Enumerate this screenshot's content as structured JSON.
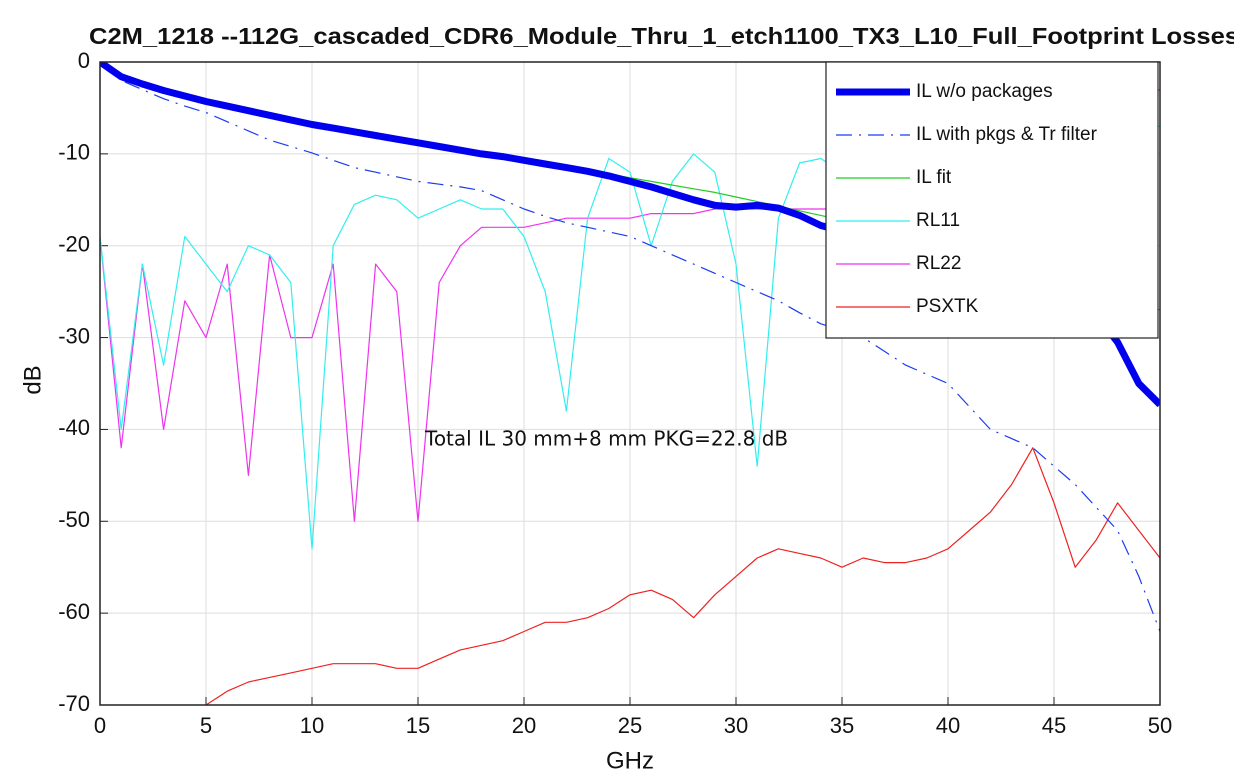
{
  "chart_data": {
    "type": "line",
    "title": "C2M_1218 --112G_cascaded_CDR6_Module_Thru_1_etch1100_TX3_L10_Full_Footprint Losses",
    "xlabel": "GHz",
    "ylabel": "dB",
    "annotation": "Total IL 30 mm+8 mm PKG=22.8 dB",
    "x": [
      0,
      1,
      2,
      3,
      4,
      5,
      6,
      7,
      8,
      9,
      10,
      11,
      12,
      13,
      14,
      15,
      16,
      17,
      18,
      19,
      20,
      21,
      22,
      23,
      24,
      25,
      26,
      27,
      28,
      29,
      30,
      31,
      32,
      33,
      34,
      35,
      36,
      37,
      38,
      39,
      40,
      41,
      42,
      43,
      44,
      45,
      46,
      47,
      48,
      49,
      50
    ],
    "xlim": [
      0,
      50
    ],
    "ylim": [
      -70,
      0
    ],
    "xticks": [
      0,
      5,
      10,
      15,
      20,
      25,
      30,
      35,
      40,
      45,
      50
    ],
    "yticks": [
      0,
      -10,
      -20,
      -30,
      -40,
      -50,
      -60,
      -70
    ],
    "grid": true,
    "legend": "upper right",
    "series": [
      {
        "name": "IL w/o packages",
        "color": "#0000ee",
        "line_width": 7,
        "dash": "solid",
        "values": [
          0,
          -1.6,
          -2.4,
          -3.1,
          -3.7,
          -4.3,
          -4.8,
          -5.3,
          -5.8,
          -6.3,
          -6.8,
          -7.2,
          -7.6,
          -8.0,
          -8.4,
          -8.8,
          -9.2,
          -9.6,
          -10.0,
          -10.3,
          -10.7,
          -11.1,
          -11.5,
          -11.9,
          -12.4,
          -13.0,
          -13.6,
          -14.3,
          -15.0,
          -15.6,
          -15.8,
          -15.6,
          -15.9,
          -16.7,
          -17.8,
          -18.4,
          -18.5,
          -18.6,
          -18.9,
          -19.3,
          -19.8,
          -20.4,
          -21.1,
          -21.8,
          -22.6,
          -23.5,
          -25,
          -27.5,
          -30.5,
          -35,
          -37.3
        ]
      },
      {
        "name": "IL with pkgs & Tr filter",
        "color": "#1a3cf0",
        "line_width": 1.2,
        "dash": "dashdot",
        "values": [
          0,
          -2.0,
          -3.0,
          -4.0,
          -4.8,
          -5.5,
          -6.5,
          -7.5,
          -8.5,
          -9.2,
          -9.9,
          -10.7,
          -11.5,
          -12.0,
          -12.5,
          -13.0,
          -13.3,
          -13.6,
          -14.0,
          -15.0,
          -16.0,
          -16.8,
          -17.5,
          -18.0,
          -18.5,
          -19.0,
          -20.0,
          -21.0,
          -22.0,
          -23.0,
          -24.0,
          -25.0,
          -26.0,
          -27.3,
          -28.5,
          -29.2,
          -30.0,
          -31.5,
          -33.0,
          -34.0,
          -35.0,
          -37.5,
          -40.0,
          -41.0,
          -42.0,
          -44.0,
          -46.0,
          -48.5,
          -51.0,
          -56.0,
          -62.0
        ]
      },
      {
        "name": "IL fit",
        "color": "#22cc22",
        "line_width": 1.2,
        "dash": "solid",
        "values": [
          0,
          -1.5,
          -2.3,
          -3.0,
          -3.6,
          -4.2,
          -4.7,
          -5.2,
          -5.7,
          -6.2,
          -6.6,
          -7.1,
          -7.5,
          -7.9,
          -8.3,
          -8.7,
          -9.1,
          -9.5,
          -9.9,
          -10.2,
          -10.6,
          -11.0,
          -11.4,
          -11.8,
          -12.2,
          -12.6,
          -13.0,
          -13.4,
          -13.8,
          -14.2,
          -14.7,
          -15.2,
          -15.7,
          -16.2,
          -16.7,
          -17.2,
          -17.7,
          -18.2,
          -18.7,
          -19.2,
          -19.8,
          -20.4,
          -21.0,
          -21.6,
          -22.2,
          -22.9,
          -23.6,
          -24.4,
          -25.2,
          -26.1,
          -27.0
        ]
      },
      {
        "name": "RL11",
        "color": "#33eeee",
        "line_width": 1.2,
        "dash": "solid",
        "values": [
          -19,
          -40,
          -22,
          -33,
          -19,
          -22,
          -25,
          -20,
          -21,
          -24,
          -53,
          -20,
          -15.5,
          -14.5,
          -15,
          -17,
          -16,
          -15,
          -16,
          -16,
          -19,
          -25,
          -38,
          -17,
          -10.5,
          -12,
          -20,
          -13,
          -10,
          -12,
          -22,
          -44,
          -17,
          -11,
          -10.5,
          -12,
          -11,
          -10,
          -9.5,
          -9,
          -8.5,
          -8,
          -8,
          -7.5,
          -7.5,
          -7,
          -7,
          -7,
          -7,
          -7,
          -7
        ]
      },
      {
        "name": "RL22",
        "color": "#ee33ee",
        "line_width": 1.2,
        "dash": "solid",
        "values": [
          -19,
          -42,
          -22,
          -40,
          -26,
          -30,
          -22,
          -45,
          -21,
          -30,
          -30,
          -22,
          -50,
          -22,
          -25,
          -50,
          -24,
          -20,
          -18,
          -18,
          -18,
          -17.5,
          -17,
          -17,
          -17,
          -17,
          -16.5,
          -16.5,
          -16.5,
          -16,
          -16,
          -16,
          -16,
          -16,
          -16,
          -16,
          -15.5,
          -15,
          -14.5,
          -14,
          -13.5,
          -13,
          -12,
          -11,
          -10,
          -9,
          -8,
          -7,
          -5,
          -4,
          -3
        ]
      },
      {
        "name": "PSXTK",
        "color": "#ee2222",
        "line_width": 1.2,
        "dash": "solid",
        "values": [
          null,
          null,
          null,
          null,
          null,
          -70,
          -68.5,
          -67.5,
          -67,
          -66.5,
          -66,
          -65.5,
          -65.5,
          -65.5,
          -66,
          -66,
          -65,
          -64,
          -63.5,
          -63,
          -62,
          -61,
          -61,
          -60.5,
          -59.5,
          -58,
          -57.5,
          -58.5,
          -60.5,
          -58,
          -56,
          -54,
          -53,
          -53.5,
          -54,
          -55,
          -54,
          -54.5,
          -54.5,
          -54,
          -53,
          -51,
          -49,
          -46,
          -42,
          -48,
          -55,
          -52,
          -48,
          -51,
          -54
        ]
      }
    ]
  }
}
